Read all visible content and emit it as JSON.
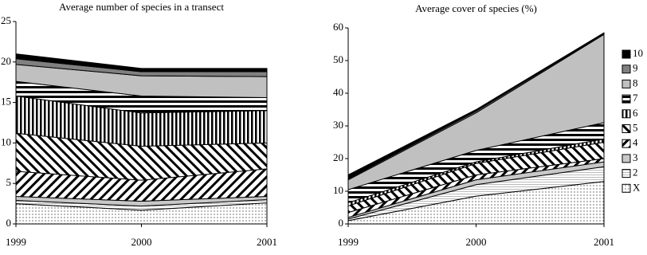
{
  "chart_data": [
    {
      "type": "area",
      "stacked": true,
      "title": "Average number of species in a transect",
      "categories": [
        "1999",
        "2000",
        "2001"
      ],
      "ylim": [
        0,
        25
      ],
      "yticks": [
        0,
        5,
        10,
        15,
        20,
        25
      ],
      "series": [
        {
          "name": "X",
          "color": "url(#dots)",
          "values": [
            2.5,
            1.7,
            2.6
          ]
        },
        {
          "name": "2",
          "color": "url(#hfine)",
          "values": [
            0.4,
            0.5,
            0.4
          ]
        },
        {
          "name": "3",
          "color": "#c8c8c8",
          "values": [
            0.5,
            0.6,
            0.4
          ]
        },
        {
          "name": "4",
          "color": "url(#diagA)",
          "values": [
            3.1,
            2.6,
            3.4
          ]
        },
        {
          "name": "5",
          "color": "url(#diagB)",
          "values": [
            4.7,
            4.2,
            3.2
          ]
        },
        {
          "name": "6",
          "color": "url(#vlines)",
          "values": [
            4.6,
            4.1,
            4.0
          ]
        },
        {
          "name": "7",
          "color": "url(#hlines)",
          "values": [
            1.8,
            2.1,
            1.6
          ]
        },
        {
          "name": "8",
          "color": "#c0c0c0",
          "values": [
            2.1,
            2.5,
            2.6
          ]
        },
        {
          "name": "9",
          "color": "#808080",
          "values": [
            0.7,
            0.5,
            0.6
          ]
        },
        {
          "name": "10",
          "color": "#000000",
          "values": [
            0.6,
            0.4,
            0.4
          ]
        }
      ]
    },
    {
      "type": "area",
      "stacked": true,
      "title": "Average cover of species (%)",
      "categories": [
        "1999",
        "2000",
        "2001"
      ],
      "ylim": [
        0,
        60
      ],
      "yticks": [
        0,
        10,
        20,
        30,
        40,
        50,
        60
      ],
      "legend": "right",
      "series": [
        {
          "name": "X",
          "color": "url(#dots)",
          "values": [
            1,
            8.5,
            13
          ]
        },
        {
          "name": "2",
          "color": "url(#hfine)",
          "values": [
            0.5,
            3.5,
            4.5
          ]
        },
        {
          "name": "3",
          "color": "#c8c8c8",
          "values": [
            0.5,
            1.5,
            1.5
          ]
        },
        {
          "name": "4",
          "color": "url(#diagA)",
          "values": [
            1.5,
            1.5,
            1
          ]
        },
        {
          "name": "5",
          "color": "url(#diagB)",
          "values": [
            2,
            3.5,
            5
          ]
        },
        {
          "name": "6",
          "color": "url(#vlines)",
          "values": [
            1,
            0.5,
            1
          ]
        },
        {
          "name": "7",
          "color": "url(#hlines)",
          "values": [
            4,
            3.5,
            5
          ]
        },
        {
          "name": "8",
          "color": "#c0c0c0",
          "values": [
            3,
            11.5,
            27
          ]
        },
        {
          "name": "9",
          "color": "#808080",
          "values": [
            0.3,
            0.5,
            0.2
          ]
        },
        {
          "name": "10",
          "color": "#000000",
          "values": [
            1.2,
            0.5,
            0.3
          ]
        }
      ]
    }
  ]
}
